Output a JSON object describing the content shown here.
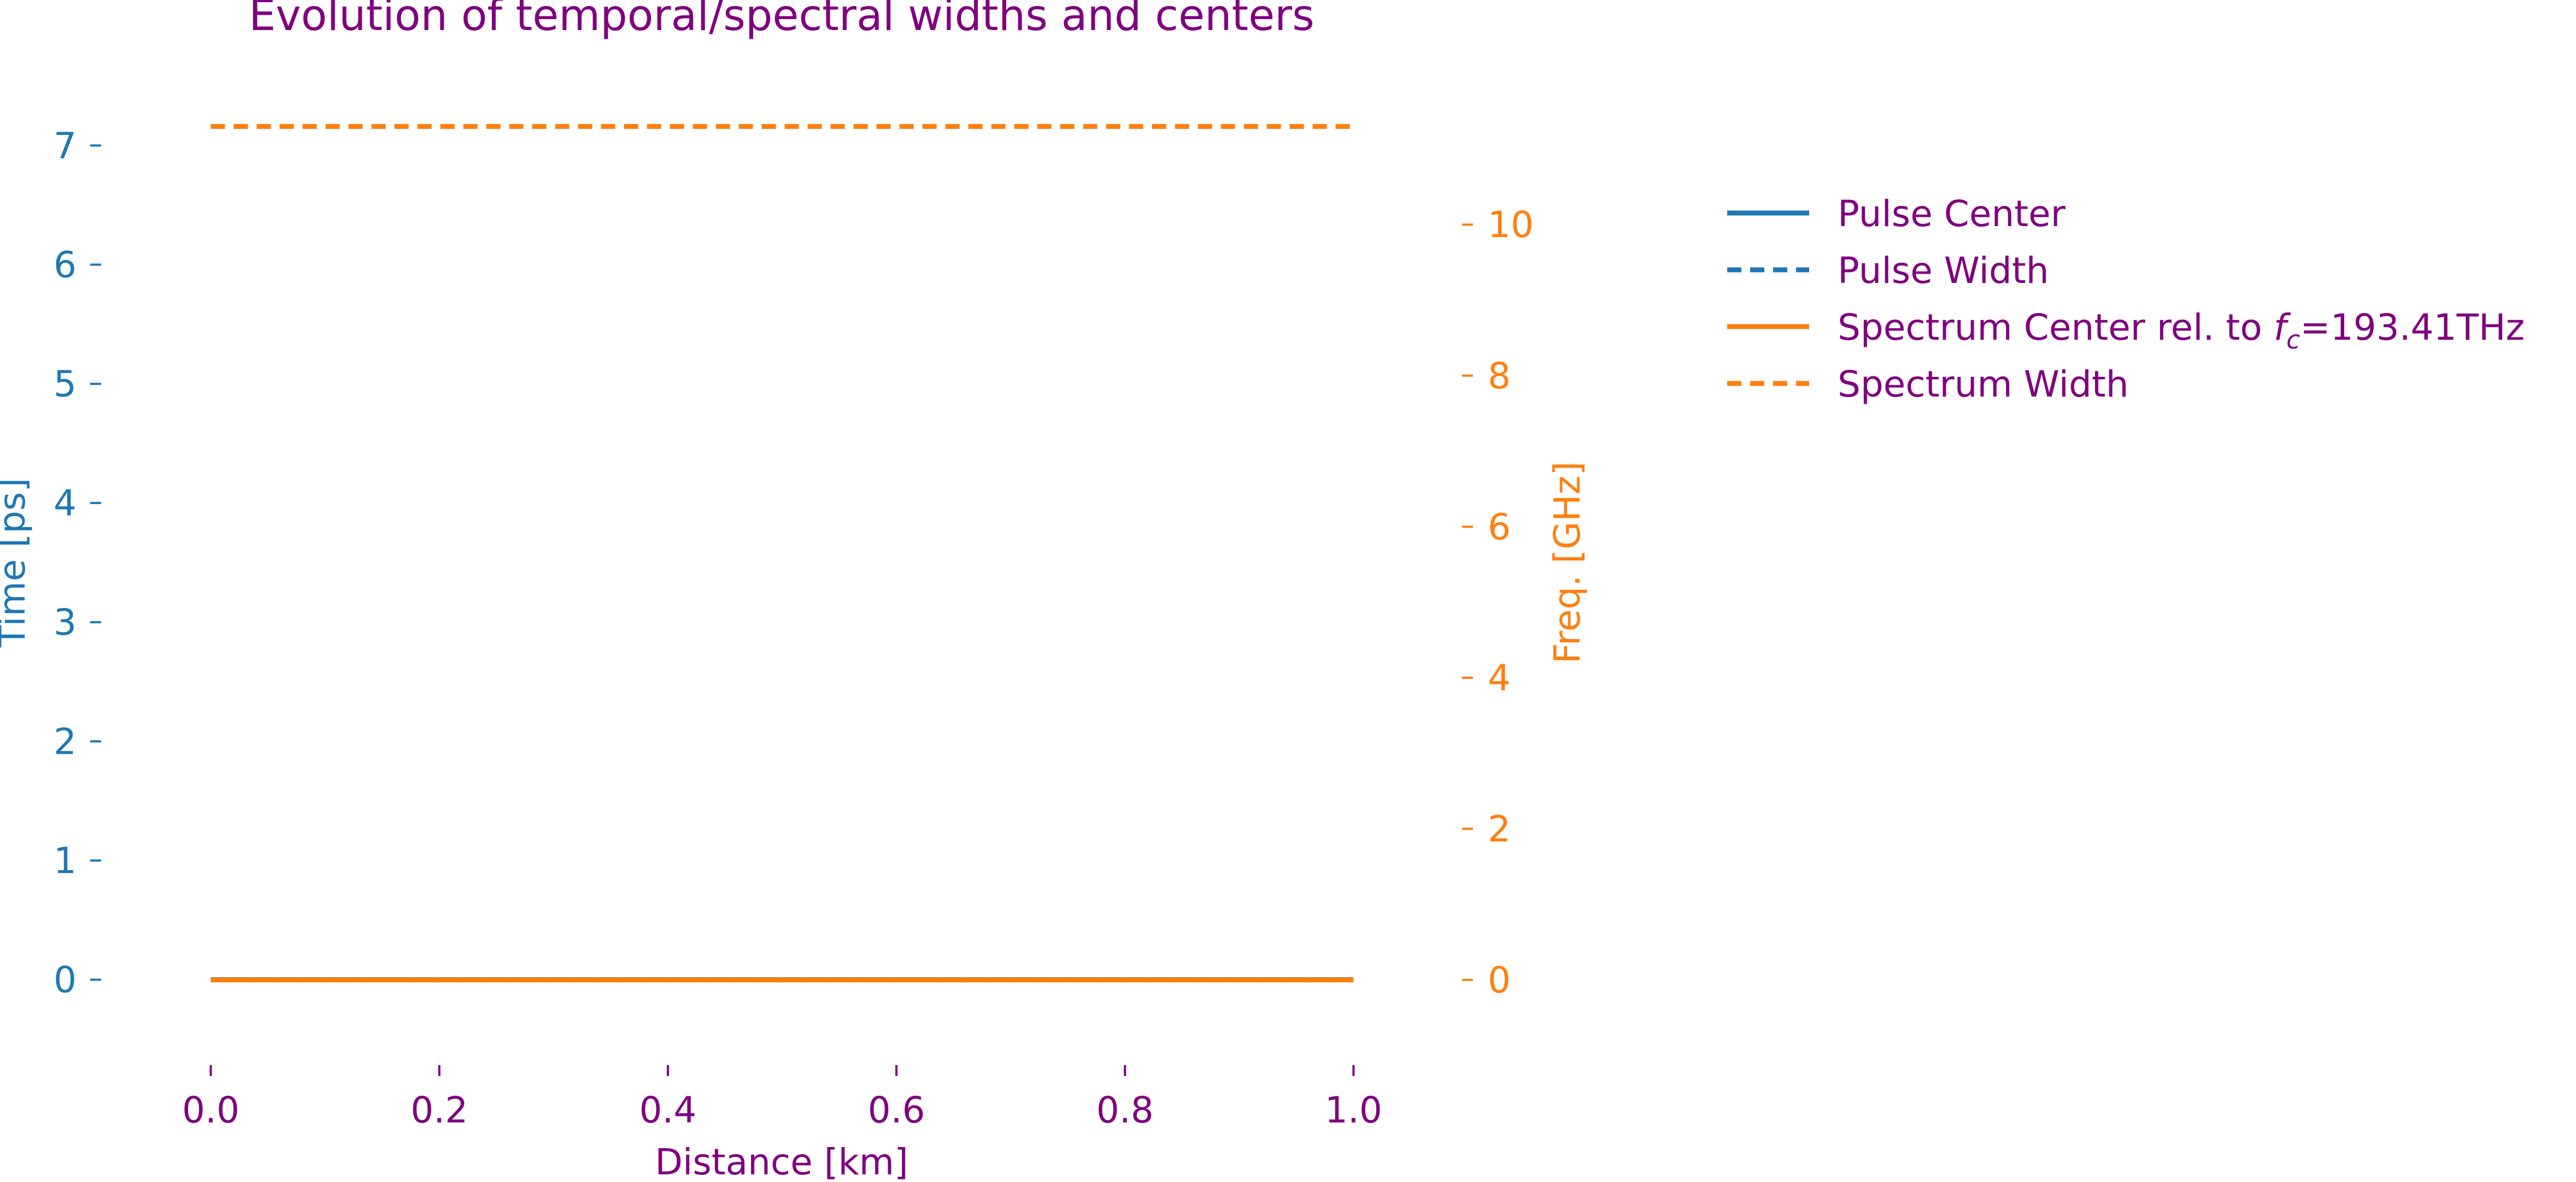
{
  "chart_data": {
    "type": "line",
    "title": "Evolution of temporal/spectral widths and centers",
    "xlabel": "Distance [km]",
    "ylabel_left": "Time [ps]",
    "ylabel_right": "Freq. [GHz]",
    "x_ticks": [
      0.0,
      0.2,
      0.4,
      0.6,
      0.8,
      1.0
    ],
    "x_tick_labels": [
      "0.0",
      "0.2",
      "0.4",
      "0.6",
      "0.8",
      "1.0"
    ],
    "xlim": [
      -0.04,
      1.04
    ],
    "y_left_ticks": [
      0,
      1,
      2,
      3,
      4,
      5,
      6,
      7
    ],
    "y_left_tick_labels": [
      "0",
      "1",
      "2",
      "3",
      "4",
      "5",
      "6",
      "7"
    ],
    "ylim_left": [
      -0.35,
      7.35
    ],
    "y_right_ticks": [
      0,
      2,
      4,
      6,
      8,
      10
    ],
    "y_right_tick_labels": [
      "0",
      "2",
      "4",
      "6",
      "8",
      "10"
    ],
    "ylim_right": [
      -0.55,
      11.6
    ],
    "grid": false,
    "legend_position": "right, outside plot",
    "legend": [
      {
        "label_main": "Pulse Center",
        "label_math": "",
        "label_tail": "",
        "color": "#1f77b4",
        "dashed": false
      },
      {
        "label_main": "Pulse Width",
        "label_math": "",
        "label_tail": "",
        "color": "#1f77b4",
        "dashed": true
      },
      {
        "label_main": "Spectrum Center rel. to ",
        "label_math": "f",
        "label_sub": "c",
        "label_tail": "=193.41THz",
        "color": "#ff7f0e",
        "dashed": false
      },
      {
        "label_main": "Spectrum Width",
        "label_math": "",
        "label_tail": "",
        "color": "#ff7f0e",
        "dashed": true
      }
    ],
    "series": [
      {
        "name": "Pulse Center",
        "axis": "left",
        "color": "#1f77b4",
        "dashed": false,
        "x": [
          0.0,
          1.0
        ],
        "y": [
          0.0,
          0.0
        ]
      },
      {
        "name": "Pulse Width",
        "axis": "left",
        "color": "#1f77b4",
        "dashed": true,
        "x": [
          0.0,
          1.0
        ],
        "y": [
          0.0,
          0.0
        ]
      },
      {
        "name": "Spectrum Center rel. to fc=193.41THz",
        "axis": "right",
        "color": "#ff7f0e",
        "dashed": false,
        "x": [
          0.0,
          1.0
        ],
        "y": [
          0.0,
          0.0
        ]
      },
      {
        "name": "Spectrum Width",
        "axis": "right",
        "color": "#ff7f0e",
        "dashed": true,
        "x": [
          0.0,
          1.0
        ],
        "y": [
          11.3,
          11.3
        ]
      }
    ],
    "colors": {
      "text": "#800080",
      "left_axis": "#1f77b4",
      "right_axis": "#ff7f0e"
    }
  }
}
